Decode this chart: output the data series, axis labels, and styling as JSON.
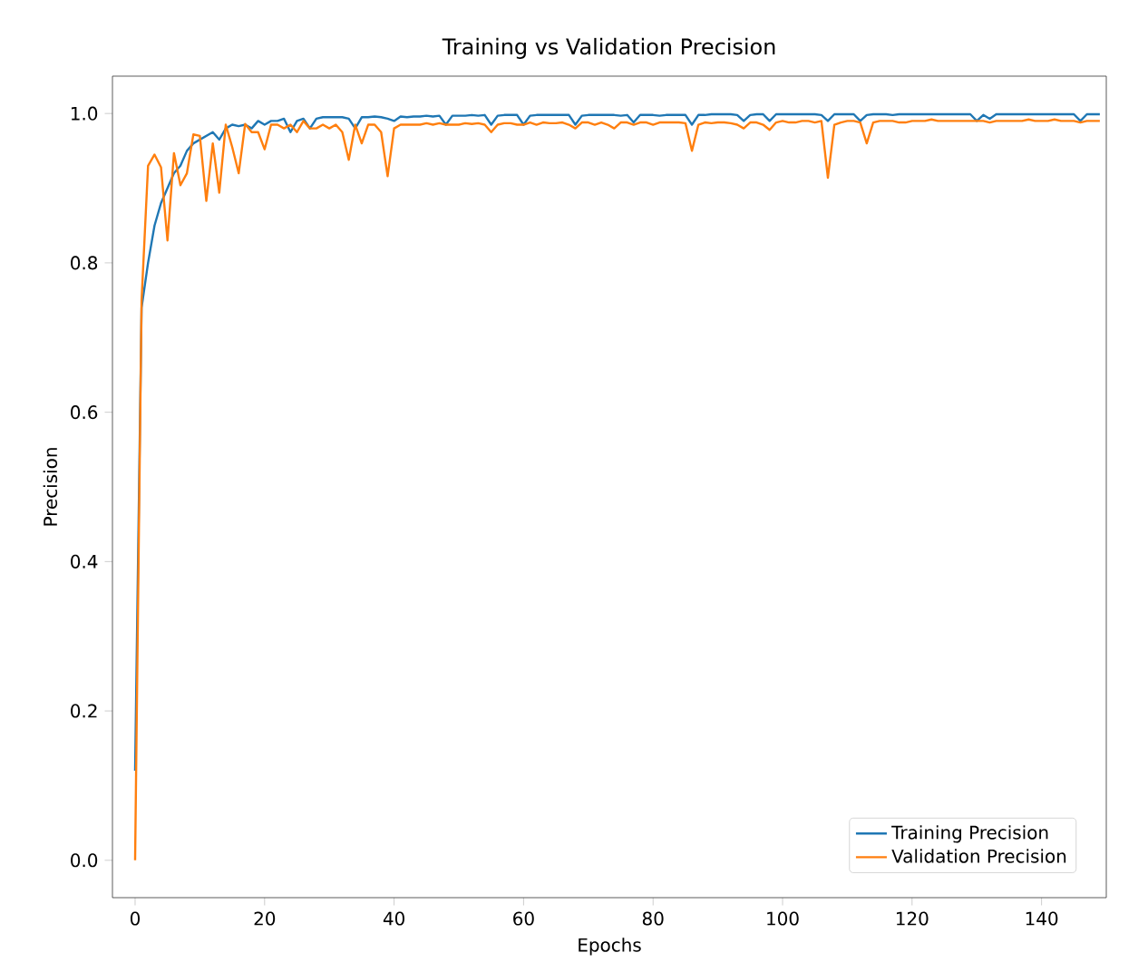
{
  "chart_data": {
    "type": "line",
    "title": "Training vs Validation Precision",
    "xlabel": "Epochs",
    "ylabel": "Precision",
    "x": [
      0,
      1,
      2,
      3,
      4,
      5,
      6,
      7,
      8,
      9,
      10,
      11,
      12,
      13,
      14,
      15,
      16,
      17,
      18,
      19,
      20,
      21,
      22,
      23,
      24,
      25,
      26,
      27,
      28,
      29,
      30,
      31,
      32,
      33,
      34,
      35,
      36,
      37,
      38,
      39,
      40,
      41,
      42,
      43,
      44,
      45,
      46,
      47,
      48,
      49,
      50,
      51,
      52,
      53,
      54,
      55,
      56,
      57,
      58,
      59,
      60,
      61,
      62,
      63,
      64,
      65,
      66,
      67,
      68,
      69,
      70,
      71,
      72,
      73,
      74,
      75,
      76,
      77,
      78,
      79,
      80,
      81,
      82,
      83,
      84,
      85,
      86,
      87,
      88,
      89,
      90,
      91,
      92,
      93,
      94,
      95,
      96,
      97,
      98,
      99,
      100,
      101,
      102,
      103,
      104,
      105,
      106,
      107,
      108,
      109,
      110,
      111,
      112,
      113,
      114,
      115,
      116,
      117,
      118,
      119,
      120,
      121,
      122,
      123,
      124,
      125,
      126,
      127,
      128,
      129,
      130,
      131,
      132,
      133,
      134,
      135,
      136,
      137,
      138,
      139,
      140,
      141,
      142,
      143,
      144,
      145,
      146,
      147,
      148,
      149
    ],
    "series": [
      {
        "name": "Training Precision",
        "color": "#1f77b4",
        "values": [
          0.12,
          0.74,
          0.8,
          0.85,
          0.88,
          0.9,
          0.92,
          0.93,
          0.95,
          0.96,
          0.965,
          0.97,
          0.975,
          0.965,
          0.98,
          0.985,
          0.983,
          0.985,
          0.98,
          0.99,
          0.985,
          0.99,
          0.99,
          0.993,
          0.975,
          0.99,
          0.993,
          0.98,
          0.993,
          0.995,
          0.995,
          0.995,
          0.995,
          0.993,
          0.98,
          0.995,
          0.995,
          0.996,
          0.995,
          0.993,
          0.99,
          0.996,
          0.995,
          0.996,
          0.996,
          0.997,
          0.996,
          0.997,
          0.985,
          0.997,
          0.997,
          0.997,
          0.998,
          0.997,
          0.998,
          0.985,
          0.997,
          0.998,
          0.998,
          0.998,
          0.985,
          0.997,
          0.998,
          0.998,
          0.998,
          0.998,
          0.998,
          0.998,
          0.985,
          0.997,
          0.998,
          0.998,
          0.998,
          0.998,
          0.998,
          0.997,
          0.998,
          0.988,
          0.998,
          0.998,
          0.998,
          0.997,
          0.998,
          0.998,
          0.998,
          0.998,
          0.985,
          0.998,
          0.998,
          0.999,
          0.999,
          0.999,
          0.999,
          0.998,
          0.99,
          0.998,
          0.999,
          0.999,
          0.99,
          0.999,
          0.999,
          0.999,
          0.999,
          0.999,
          0.999,
          0.999,
          0.998,
          0.99,
          0.999,
          0.999,
          0.999,
          0.999,
          0.99,
          0.998,
          0.999,
          0.999,
          0.999,
          0.998,
          0.999,
          0.999,
          0.999,
          0.999,
          0.999,
          0.999,
          0.999,
          0.999,
          0.999,
          0.999,
          0.999,
          0.999,
          0.99,
          0.998,
          0.993,
          0.999,
          0.999,
          0.999,
          0.999,
          0.999,
          0.999,
          0.999,
          0.999,
          0.999,
          0.999,
          0.999,
          0.999,
          0.999,
          0.99,
          0.999,
          0.999,
          0.999
        ]
      },
      {
        "name": "Validation Precision",
        "color": "#ff7f0e",
        "values": [
          0.0,
          0.75,
          0.93,
          0.945,
          0.928,
          0.83,
          0.947,
          0.904,
          0.92,
          0.972,
          0.97,
          0.883,
          0.96,
          0.894,
          0.985,
          0.955,
          0.92,
          0.986,
          0.975,
          0.975,
          0.952,
          0.985,
          0.985,
          0.98,
          0.985,
          0.975,
          0.99,
          0.98,
          0.98,
          0.985,
          0.98,
          0.985,
          0.975,
          0.938,
          0.985,
          0.96,
          0.985,
          0.985,
          0.975,
          0.916,
          0.98,
          0.985,
          0.985,
          0.985,
          0.985,
          0.987,
          0.985,
          0.987,
          0.985,
          0.985,
          0.985,
          0.987,
          0.986,
          0.987,
          0.985,
          0.975,
          0.985,
          0.987,
          0.987,
          0.985,
          0.985,
          0.988,
          0.985,
          0.988,
          0.987,
          0.987,
          0.988,
          0.985,
          0.98,
          0.988,
          0.988,
          0.985,
          0.988,
          0.985,
          0.98,
          0.988,
          0.988,
          0.985,
          0.988,
          0.988,
          0.985,
          0.988,
          0.988,
          0.988,
          0.988,
          0.987,
          0.95,
          0.985,
          0.988,
          0.987,
          0.988,
          0.988,
          0.987,
          0.985,
          0.98,
          0.988,
          0.988,
          0.985,
          0.978,
          0.988,
          0.99,
          0.988,
          0.988,
          0.99,
          0.99,
          0.988,
          0.99,
          0.914,
          0.985,
          0.988,
          0.99,
          0.99,
          0.988,
          0.96,
          0.988,
          0.99,
          0.99,
          0.99,
          0.988,
          0.988,
          0.99,
          0.99,
          0.99,
          0.992,
          0.99,
          0.99,
          0.99,
          0.99,
          0.99,
          0.99,
          0.99,
          0.99,
          0.988,
          0.99,
          0.99,
          0.99,
          0.99,
          0.99,
          0.992,
          0.99,
          0.99,
          0.99,
          0.992,
          0.99,
          0.99,
          0.99,
          0.988,
          0.99,
          0.99,
          0.99
        ]
      }
    ],
    "xlim": [
      -3.5,
      150
    ],
    "ylim": [
      -0.05,
      1.05
    ],
    "xticks": [
      0,
      20,
      40,
      60,
      80,
      100,
      120,
      140
    ],
    "yticks": [
      {
        "value": 0,
        "label": "0.0"
      },
      0.2,
      0.4,
      0.6,
      0.8,
      {
        "value": 1,
        "label": "1.0"
      }
    ],
    "legend": "bottom right",
    "grid": false
  }
}
